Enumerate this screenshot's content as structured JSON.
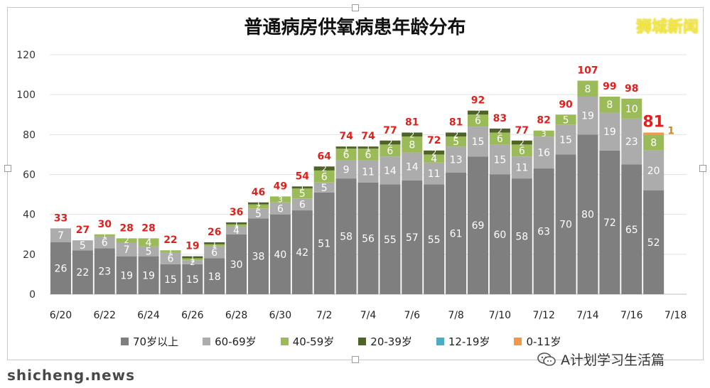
{
  "watermark": "狮城新闻",
  "footer_watermark": "shicheng.news",
  "wechat_account": "A计划学习生活篇",
  "chart_data": {
    "type": "bar",
    "stacked": true,
    "title": "普通病房供氧病患年龄分布",
    "xlabel": "",
    "ylabel": "",
    "ylim": [
      0,
      120
    ],
    "yticks": [
      0,
      20,
      40,
      60,
      80,
      100,
      120
    ],
    "grid": true,
    "legend_position": "bottom",
    "categories": [
      "6/20",
      "6/21",
      "6/22",
      "6/23",
      "6/24",
      "6/25",
      "6/26",
      "6/27",
      "6/28",
      "6/29",
      "6/30",
      "7/1",
      "7/2",
      "7/3",
      "7/4",
      "7/5",
      "7/6",
      "7/7",
      "7/8",
      "7/9",
      "7/10",
      "7/11",
      "7/12",
      "7/13",
      "7/14",
      "7/15",
      "7/16",
      "7/17",
      "7/18"
    ],
    "tick_labels": [
      "6/20",
      "",
      "6/22",
      "",
      "6/24",
      "",
      "6/26",
      "",
      "6/28",
      "",
      "6/30",
      "",
      "7/2",
      "",
      "7/4",
      "",
      "7/6",
      "",
      "7/8",
      "",
      "7/10",
      "",
      "7/12",
      "",
      "7/14",
      "",
      "7/16",
      "",
      "7/18"
    ],
    "series": [
      {
        "name": "70岁以上",
        "color": "#7f7f7f",
        "values": [
          26,
          22,
          23,
          19,
          19,
          15,
          15,
          18,
          30,
          38,
          40,
          42,
          51,
          58,
          56,
          55,
          57,
          55,
          61,
          69,
          60,
          58,
          63,
          70,
          80,
          72,
          65,
          52,
          0
        ]
      },
      {
        "name": "60-69岁",
        "color": "#acacac",
        "values": [
          7,
          5,
          6,
          7,
          5,
          6,
          2,
          6,
          4,
          5,
          6,
          6,
          5,
          9,
          11,
          14,
          14,
          11,
          13,
          15,
          15,
          11,
          16,
          15,
          19,
          19,
          23,
          20,
          0
        ]
      },
      {
        "name": "40-59岁",
        "color": "#9bbb59",
        "values": [
          0,
          0,
          1,
          2,
          4,
          1,
          1,
          1,
          1,
          2,
          3,
          5,
          6,
          6,
          6,
          6,
          8,
          4,
          5,
          6,
          6,
          6,
          3,
          5,
          8,
          8,
          10,
          8,
          0
        ]
      },
      {
        "name": "20-39岁",
        "color": "#4f6228",
        "values": [
          0,
          0,
          0,
          0,
          0,
          0,
          1,
          1,
          1,
          1,
          0,
          1,
          2,
          1,
          1,
          2,
          2,
          2,
          2,
          2,
          2,
          2,
          0,
          0,
          0,
          0,
          0,
          0,
          0
        ]
      },
      {
        "name": "12-19岁",
        "color": "#4bacc6",
        "values": [
          0,
          0,
          0,
          0,
          0,
          0,
          0,
          0,
          0,
          0,
          0,
          0,
          0,
          0,
          0,
          0,
          0,
          0,
          0,
          0,
          0,
          0,
          0,
          0,
          0,
          0,
          0,
          0,
          0
        ]
      },
      {
        "name": "0-11岁",
        "color": "#f79646",
        "values": [
          0,
          0,
          0,
          0,
          0,
          0,
          0,
          0,
          0,
          0,
          0,
          0,
          0,
          0,
          0,
          0,
          0,
          0,
          0,
          0,
          0,
          0,
          0,
          0,
          0,
          0,
          0,
          1,
          0
        ]
      }
    ],
    "segment_labels": [
      [
        26,
        22,
        23,
        19,
        19,
        15,
        15,
        18,
        30,
        38,
        40,
        42,
        51,
        58,
        56,
        55,
        57,
        55,
        61,
        69,
        60,
        58,
        63,
        70,
        80,
        72,
        65,
        52,
        ""
      ],
      [
        7,
        5,
        6,
        7,
        5,
        6,
        2,
        6,
        4,
        5,
        6,
        6,
        5,
        9,
        11,
        14,
        14,
        11,
        13,
        15,
        15,
        11,
        16,
        15,
        19,
        19,
        23,
        20,
        ""
      ],
      [
        "",
        "",
        1,
        2,
        4,
        1,
        1,
        1,
        1,
        2,
        3,
        5,
        6,
        6,
        6,
        6,
        8,
        4,
        5,
        6,
        6,
        6,
        3,
        5,
        8,
        8,
        10,
        8,
        ""
      ],
      [
        "",
        "",
        "",
        "",
        "",
        "",
        1,
        1,
        1,
        1,
        "",
        1,
        2,
        1,
        1,
        2,
        2,
        2,
        2,
        2,
        2,
        2,
        "",
        "",
        "",
        "",
        "",
        "",
        ""
      ],
      [
        "",
        "",
        "",
        "",
        "",
        "",
        "",
        "",
        "",
        "",
        "",
        "",
        "",
        "",
        "",
        "",
        "",
        "",
        "",
        "",
        "",
        "",
        "",
        "",
        "",
        "",
        "",
        "",
        ""
      ],
      [
        "",
        "",
        "",
        "",
        "",
        "",
        "",
        "",
        "",
        "",
        "",
        "",
        "",
        "",
        "",
        "",
        "",
        "",
        "",
        "",
        "",
        "",
        "",
        "",
        "",
        "",
        "",
        1,
        ""
      ]
    ],
    "totals": [
      33,
      27,
      30,
      28,
      28,
      22,
      19,
      26,
      36,
      46,
      49,
      54,
      64,
      74,
      74,
      77,
      81,
      72,
      81,
      92,
      83,
      77,
      82,
      90,
      107,
      99,
      98,
      81,
      ""
    ],
    "total_color": "#e0201c",
    "highlight_total_index": 27
  }
}
